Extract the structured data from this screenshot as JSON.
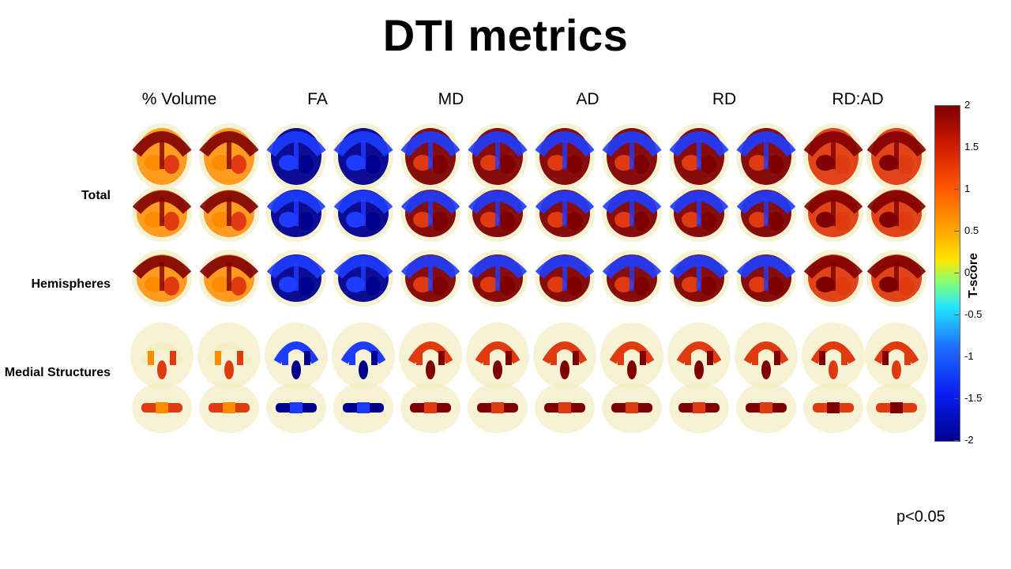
{
  "title": "DTI metrics",
  "columns": [
    "% Volume",
    "FA",
    "MD",
    "AD",
    "RD",
    "RD:AD"
  ],
  "rows": [
    "Total",
    "Hemispheres",
    "Medial Structures"
  ],
  "colorbar": {
    "title": "T-score",
    "ticks": [
      "2",
      "1.5",
      "1",
      "0.5",
      "0",
      "-0.5",
      "-1",
      "-1.5",
      "-2"
    ],
    "range": [
      -2,
      2
    ]
  },
  "significance": "p<0.05",
  "colors": {
    "high": "#7f0000",
    "positive": "#e03a10",
    "mid_positive": "#ff8c00",
    "negative": "#1e3cff",
    "low": "#00008f",
    "brain_shell": "#f3eec4"
  }
}
